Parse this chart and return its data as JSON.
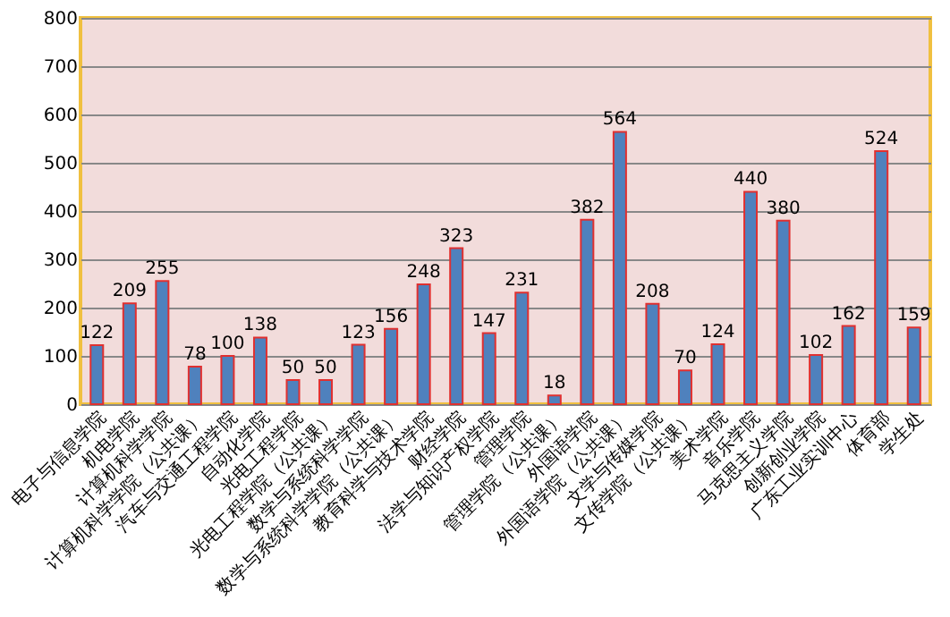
{
  "chart_data": {
    "type": "bar",
    "categories": [
      "电子与信息学院",
      "机电学院",
      "计算机科学学院",
      "计算机科学学院（公共课）",
      "汽车与交通工程学院",
      "自动化学院",
      "光电工程学院",
      "光电工程学院（公共课）",
      "数学与系统科学学院",
      "数学与系统科学学院（公共课）",
      "教育科学与技术学院",
      "财经学院",
      "法学与知识产权学院",
      "管理学院",
      "管理学院（公共课）",
      "外国语学院",
      "外国语学院（公共课）",
      "文学与传媒学院",
      "文传学院（公共课）",
      "美术学院",
      "音乐学院",
      "马克思主义学院",
      "创新创业学院",
      "广东工业实训中心",
      "体育部",
      "学生处"
    ],
    "values": [
      122,
      209,
      255,
      78,
      100,
      138,
      50,
      50,
      123,
      156,
      248,
      323,
      147,
      231,
      18,
      382,
      564,
      208,
      70,
      124,
      440,
      380,
      102,
      162,
      524,
      159
    ],
    "color": "#4f81bd",
    "ylim": [
      0,
      800
    ],
    "yticks": [
      0,
      100,
      200,
      300,
      400,
      500,
      600,
      700,
      800
    ],
    "grid": "y",
    "data_labels": true
  }
}
